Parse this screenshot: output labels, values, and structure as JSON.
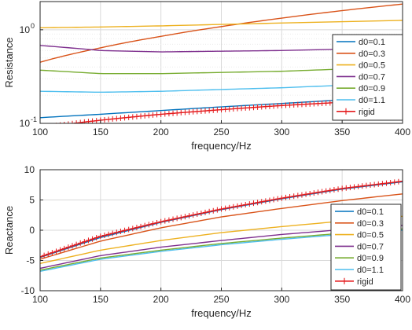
{
  "chart_data": [
    {
      "type": "line",
      "ylabel": "Resistance",
      "xlabel": "frequency/Hz",
      "xlim": [
        100,
        400
      ],
      "ylim": [
        0.1,
        2
      ],
      "yscale": "log",
      "grid": true,
      "legend_position": "right",
      "x_ticks": [
        100,
        150,
        200,
        250,
        300,
        350,
        400
      ],
      "x_tick_labels": [
        "100",
        "150",
        "200",
        "250",
        "300",
        "350",
        "400"
      ],
      "y_ticks": [
        0.1,
        1
      ],
      "y_tick_labels": [
        "10^-1",
        "10^0"
      ],
      "x": [
        100,
        150,
        200,
        250,
        300,
        350,
        400
      ],
      "series": [
        {
          "name": "d0=0.1",
          "color": "#0072BD",
          "values": [
            0.115,
            0.125,
            0.137,
            0.15,
            0.163,
            0.178,
            0.19
          ]
        },
        {
          "name": "d0=0.3",
          "color": "#D95319",
          "values": [
            0.45,
            0.64,
            0.85,
            1.08,
            1.33,
            1.6,
            1.88
          ]
        },
        {
          "name": "d0=0.5",
          "color": "#EDB120",
          "values": [
            1.05,
            1.07,
            1.1,
            1.14,
            1.18,
            1.22,
            1.26
          ]
        },
        {
          "name": "d0=0.7",
          "color": "#7E2F8E",
          "values": [
            0.68,
            0.6,
            0.58,
            0.59,
            0.6,
            0.62,
            0.64
          ]
        },
        {
          "name": "d0=0.9",
          "color": "#77AC30",
          "values": [
            0.37,
            0.34,
            0.34,
            0.35,
            0.36,
            0.38,
            0.4
          ]
        },
        {
          "name": "d0=1.1",
          "color": "#4DBEEE",
          "values": [
            0.22,
            0.215,
            0.22,
            0.23,
            0.24,
            0.255,
            0.27
          ]
        },
        {
          "name": "rigid",
          "color": "#E41A1C",
          "marker": "plus",
          "values": [
            0.09,
            0.108,
            0.125,
            0.14,
            0.155,
            0.168,
            0.18
          ]
        }
      ]
    },
    {
      "type": "line",
      "ylabel": "Reactance",
      "xlabel": "frequency/Hz",
      "xlim": [
        100,
        400
      ],
      "ylim": [
        -10,
        10
      ],
      "grid": true,
      "legend_position": "bottom-right",
      "x_ticks": [
        100,
        150,
        200,
        250,
        300,
        350,
        400
      ],
      "x_tick_labels": [
        "100",
        "150",
        "200",
        "250",
        "300",
        "350",
        "400"
      ],
      "y_ticks": [
        -10,
        -5,
        0,
        5,
        10
      ],
      "y_tick_labels": [
        "-10",
        "-5",
        "0",
        "5",
        "10"
      ],
      "x": [
        100,
        150,
        200,
        250,
        300,
        350,
        400
      ],
      "series": [
        {
          "name": "d0=0.1",
          "color": "#0072BD",
          "values": [
            -4.5,
            -1.2,
            1.3,
            3.4,
            5.2,
            6.8,
            8.0
          ]
        },
        {
          "name": "d0=0.3",
          "color": "#D95319",
          "values": [
            -4.8,
            -1.8,
            0.4,
            2.2,
            3.6,
            4.9,
            6.0
          ]
        },
        {
          "name": "d0=0.5",
          "color": "#EDB120",
          "values": [
            -5.5,
            -3.3,
            -1.7,
            -0.4,
            0.6,
            1.5,
            2.3
          ]
        },
        {
          "name": "d0=0.7",
          "color": "#7E2F8E",
          "values": [
            -6.3,
            -4.2,
            -2.8,
            -1.7,
            -0.7,
            0.1,
            0.8
          ]
        },
        {
          "name": "d0=0.9",
          "color": "#77AC30",
          "values": [
            -6.6,
            -4.6,
            -3.3,
            -2.2,
            -1.3,
            -0.5,
            0.2
          ]
        },
        {
          "name": "d0=1.1",
          "color": "#4DBEEE",
          "values": [
            -6.8,
            -4.8,
            -3.5,
            -2.4,
            -1.5,
            -0.7,
            0.0
          ]
        },
        {
          "name": "rigid",
          "color": "#E41A1C",
          "marker": "plus",
          "values": [
            -4.4,
            -1.0,
            1.4,
            3.5,
            5.3,
            6.9,
            8.1
          ]
        }
      ]
    }
  ]
}
